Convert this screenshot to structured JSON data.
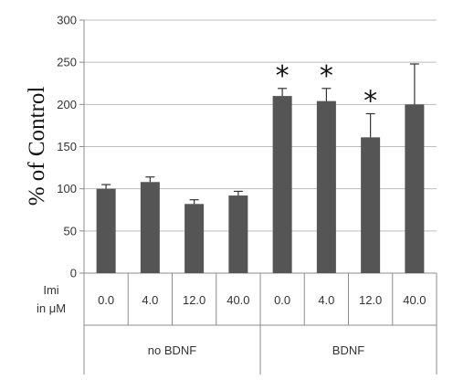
{
  "chart_data": {
    "type": "bar",
    "ylabel": "% of Control",
    "ylim": [
      0,
      300
    ],
    "yticks": [
      0,
      50,
      100,
      150,
      200,
      250,
      300
    ],
    "grid": true,
    "bar_color": "#555555",
    "row_label_1": "Imi",
    "row_label_2": "in μM",
    "categories": [
      "0.0",
      "4.0",
      "12.0",
      "40.0",
      "0.0",
      "4.0",
      "12.0",
      "40.0"
    ],
    "groups": [
      {
        "label": "no BDNF",
        "start": 0,
        "count": 4
      },
      {
        "label": "BDNF",
        "start": 4,
        "count": 4
      }
    ],
    "values": [
      100,
      108,
      82,
      92,
      210,
      204,
      161,
      200
    ],
    "errors": [
      5,
      6,
      5,
      5,
      9,
      15,
      28,
      48
    ],
    "significance": [
      "",
      "",
      "",
      "",
      "*",
      "*",
      "*",
      ""
    ]
  }
}
